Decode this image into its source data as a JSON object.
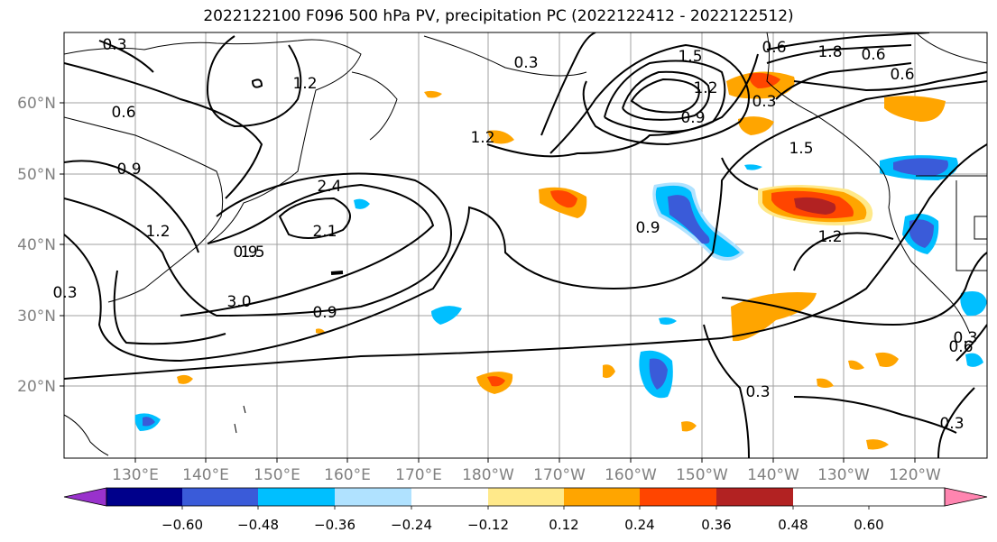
{
  "title": "2022122100 F096 500 hPa PV, precipitation PC (2022122412 - 2022122512)",
  "map": {
    "lon_labels": [
      "130°E",
      "140°E",
      "150°E",
      "160°E",
      "170°E",
      "180°W",
      "170°W",
      "160°W",
      "150°W",
      "140°W",
      "130°W",
      "120°W"
    ],
    "lat_labels": [
      "60°N",
      "50°N",
      "40°N",
      "30°N",
      "20°N"
    ],
    "contour_labels": [
      "0.3",
      "0.6",
      "0.9",
      "1.2",
      "1.5",
      "3.0",
      "2.4",
      "2.1",
      "1.5",
      "1.2",
      "0.6",
      "1.8",
      "0.6",
      "0.6",
      "0.9",
      "1.2",
      "1.5",
      "0.9",
      "1.2",
      "0.9",
      "1.2",
      "0.3",
      "0.6",
      "0.3",
      "0.3",
      "0.3",
      "0.3",
      "0.3",
      "0.9"
    ]
  },
  "colorbar": {
    "tick_labels": [
      "−0.60",
      "−0.48",
      "−0.36",
      "−0.24",
      "−0.12",
      "0.12",
      "0.24",
      "0.36",
      "0.48",
      "0.60"
    ],
    "colors": [
      "#9932cc",
      "#00008b",
      "#3a5bd9",
      "#00bfff",
      "#b0e2ff",
      "#ffffff",
      "#ffe98a",
      "#ffa500",
      "#ff4500",
      "#b22222",
      "#ff85b0"
    ]
  }
}
